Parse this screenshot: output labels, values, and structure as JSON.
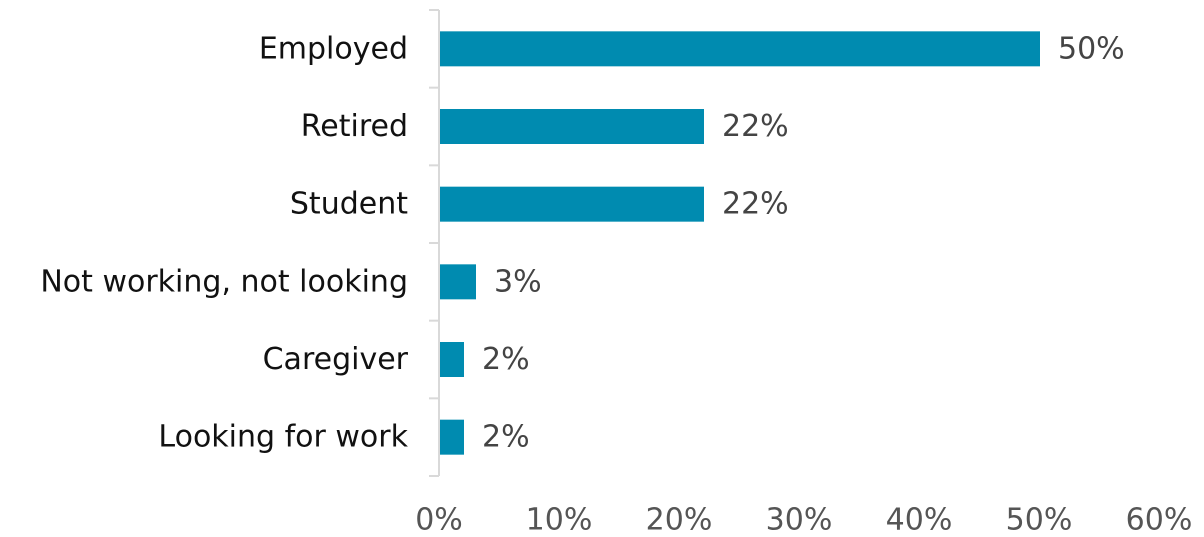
{
  "chart_data": {
    "type": "bar",
    "orientation": "horizontal",
    "categories": [
      "Employed",
      "Retired",
      "Student",
      "Not working, not looking",
      "Caregiver",
      "Looking for work"
    ],
    "values": [
      50,
      22,
      22,
      3,
      2,
      2
    ],
    "value_labels": [
      "50%",
      "22%",
      "22%",
      "3%",
      "2%",
      "2%"
    ],
    "title": "",
    "xlabel": "",
    "ylabel": "",
    "xlim": [
      0,
      60
    ],
    "x_ticks": [
      0,
      10,
      20,
      30,
      40,
      50,
      60
    ],
    "x_tick_labels": [
      "0%",
      "10%",
      "20%",
      "30%",
      "40%",
      "50%",
      "60%"
    ],
    "grid": false,
    "legend": "none",
    "bar_color": "#008bb0"
  }
}
